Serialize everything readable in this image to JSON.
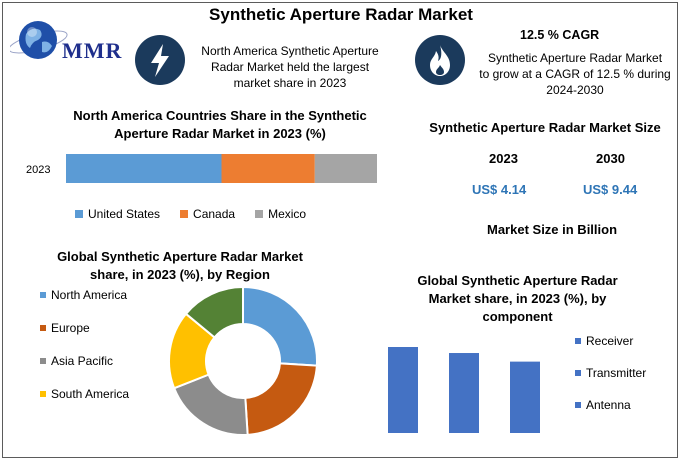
{
  "title": "Synthetic Aperture Radar Market",
  "brand": "MMR",
  "icons": {
    "highlight": "lightning-icon",
    "cagr": "flame-icon",
    "logo": "globe-icon"
  },
  "highlight_text": [
    "North America Synthetic Aperture",
    "Radar Market held the largest",
    "market share in 2023"
  ],
  "cagr": {
    "headline": "12.5 % CAGR",
    "lines": [
      "Synthetic Aperture Radar Market",
      "to grow at a CAGR of 12.5 % during",
      "2024-2030"
    ]
  },
  "market_size": {
    "title": "Synthetic Aperture Radar Market Size",
    "years": [
      "2023",
      "2030"
    ],
    "values": [
      "US$ 4.14",
      "US$ 9.44"
    ],
    "unit_label": "Market Size in Billion"
  },
  "colors": {
    "us": "#5b9bd5",
    "canada": "#ed7d31",
    "mexico": "#a5a5a5",
    "north_america": "#5b9bd5",
    "europe": "#c55a11",
    "asia_pacific": "#8c8c8c",
    "south_america": "#ffc000",
    "mea": "#548235",
    "bar": "#4472c4",
    "size_value": "#2e75b6",
    "icon_bg": "#1b3a5c"
  },
  "chart_data": [
    {
      "type": "bar",
      "orientation": "horizontal-stacked",
      "title": "North America Countries Share in the Synthetic Aperture Radar Market in 2023 (%)",
      "categories": [
        "2023"
      ],
      "series": [
        {
          "name": "United States",
          "values": [
            50
          ]
        },
        {
          "name": "Canada",
          "values": [
            30
          ]
        },
        {
          "name": "Mexico",
          "values": [
            20
          ]
        }
      ],
      "legend": "bottom"
    },
    {
      "type": "pie",
      "style": "donut",
      "title": "Global Synthetic Aperture Radar Market share, in 2023 (%), by Region",
      "labels": [
        "North America",
        "Europe",
        "Asia Pacific",
        "South America",
        ""
      ],
      "values": [
        26,
        23,
        20,
        17,
        14
      ],
      "legend": "left"
    },
    {
      "type": "bar",
      "title": "Global Synthetic Aperture Radar Market share, in 2023 (%), by component",
      "categories": [
        "Receiver",
        "Transmitter",
        "Antenna"
      ],
      "values": [
        100,
        93,
        83
      ],
      "ylim": [
        0,
        100
      ],
      "legend": "right"
    }
  ]
}
